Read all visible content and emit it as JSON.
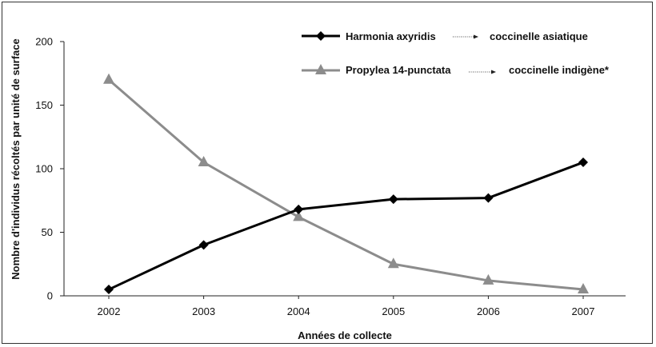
{
  "chart_data": {
    "type": "line",
    "x": [
      "2002",
      "2003",
      "2004",
      "2005",
      "2006",
      "2007"
    ],
    "xlabel": "Années de collecte",
    "ylabel": "Nombre d'individus récoltés par unité de surface",
    "ylim": [
      0,
      200
    ],
    "yticks": [
      "0",
      "50",
      "100",
      "150",
      "200"
    ],
    "grid": false,
    "legend_position": "top-right",
    "series": [
      {
        "name": "Harmonia axyridis",
        "common_name": "coccinelle asiatique",
        "marker": "diamond",
        "color": "#000000",
        "values": [
          5,
          40,
          68,
          76,
          77,
          105
        ]
      },
      {
        "name": "Propylea 14-punctata",
        "common_name": "coccinelle indigène*",
        "marker": "triangle",
        "color": "#8c8c8c",
        "values": [
          170,
          105,
          62,
          25,
          12,
          5
        ]
      }
    ]
  }
}
